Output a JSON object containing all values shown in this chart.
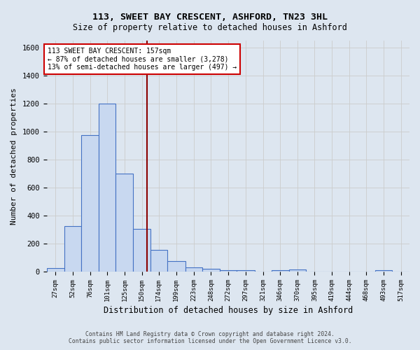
{
  "title": "113, SWEET BAY CRESCENT, ASHFORD, TN23 3HL",
  "subtitle": "Size of property relative to detached houses in Ashford",
  "xlabel": "Distribution of detached houses by size in Ashford",
  "ylabel": "Number of detached properties",
  "footer_line1": "Contains HM Land Registry data © Crown copyright and database right 2024.",
  "footer_line2": "Contains public sector information licensed under the Open Government Licence v3.0.",
  "bin_labels": [
    "27sqm",
    "52sqm",
    "76sqm",
    "101sqm",
    "125sqm",
    "150sqm",
    "174sqm",
    "199sqm",
    "223sqm",
    "248sqm",
    "272sqm",
    "297sqm",
    "321sqm",
    "346sqm",
    "370sqm",
    "395sqm",
    "419sqm",
    "444sqm",
    "468sqm",
    "493sqm",
    "517sqm"
  ],
  "bar_values": [
    25,
    325,
    975,
    1200,
    700,
    305,
    155,
    75,
    30,
    20,
    10,
    10,
    0,
    10,
    15,
    0,
    0,
    0,
    0,
    10,
    0
  ],
  "bar_color": "#c8d8f0",
  "bar_edge_color": "#4472c4",
  "grid_color": "#cccccc",
  "bg_color": "#dde6f0",
  "property_size": 157,
  "bin_edges": [
    14.5,
    39.5,
    63.5,
    88.5,
    112.5,
    137.5,
    161.5,
    185.5,
    211.5,
    235.5,
    260.0,
    284.5,
    309.5,
    333.5,
    358.5,
    382.5,
    407.0,
    431.5,
    456.0,
    480.5,
    505.0,
    529.5
  ],
  "vline_x": 157,
  "vline_color": "#8b0000",
  "annotation_text": "113 SWEET BAY CRESCENT: 157sqm\n← 87% of detached houses are smaller (3,278)\n13% of semi-detached houses are larger (497) →",
  "annotation_box_color": "white",
  "annotation_box_edge": "#cc0000",
  "ylim": [
    0,
    1650
  ],
  "yticks": [
    0,
    200,
    400,
    600,
    800,
    1000,
    1200,
    1400,
    1600
  ]
}
